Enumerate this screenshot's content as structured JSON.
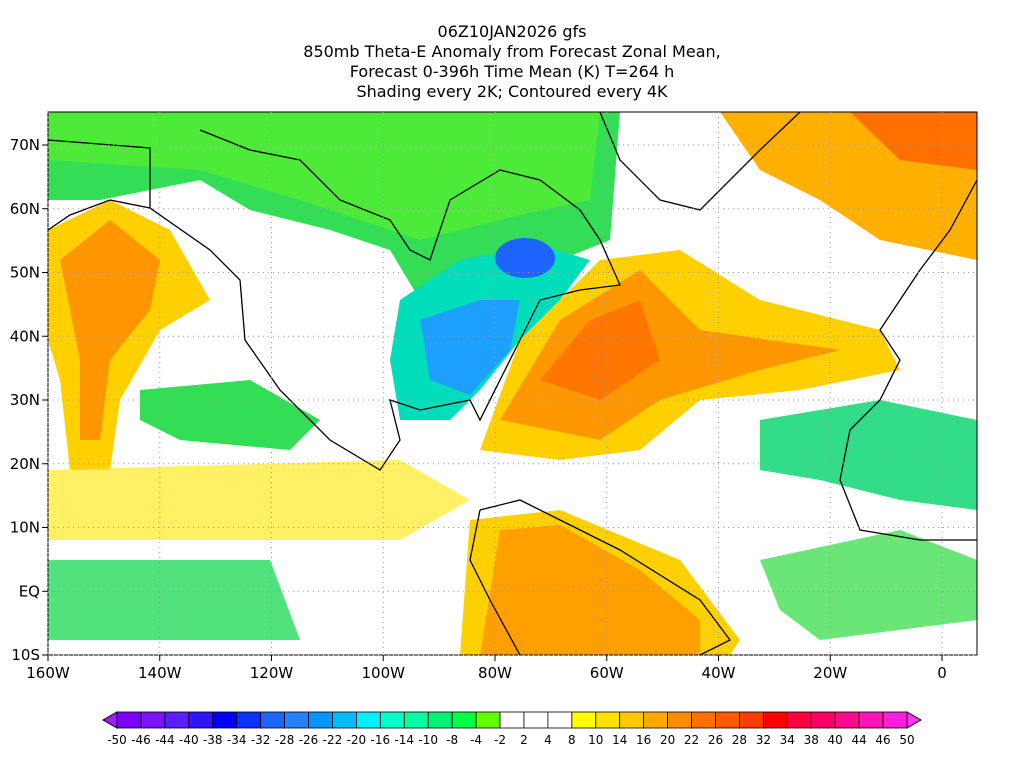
{
  "title_lines": [
    "06Z10JAN2026 gfs",
    "850mb Theta-E Anomaly from Forecast Zonal Mean,",
    "Forecast 0-396h Time Mean (K) T=264 h",
    "Shading every 2K; Contoured every 4K"
  ],
  "map": {
    "lat_labels": [
      "70N",
      "60N",
      "50N",
      "40N",
      "30N",
      "20N",
      "10N",
      "EQ",
      "10S"
    ],
    "lon_labels": [
      "160W",
      "140W",
      "120W",
      "100W",
      "80W",
      "60W",
      "40W",
      "20W",
      "0"
    ]
  },
  "colorbar": {
    "labels": [
      "-50",
      "-46",
      "-44",
      "-40",
      "-38",
      "-34",
      "-32",
      "-28",
      "-26",
      "-22",
      "-20",
      "-16",
      "-14",
      "-10",
      "-8",
      "-4",
      "-2",
      "2",
      "4",
      "8",
      "10",
      "14",
      "16",
      "20",
      "22",
      "26",
      "28",
      "32",
      "34",
      "38",
      "40",
      "44",
      "46",
      "50"
    ],
    "colors": [
      "#8000ff",
      "#7a14ff",
      "#5a1eff",
      "#3214ff",
      "#0000ff",
      "#0a32ff",
      "#1e64ff",
      "#2882ff",
      "#0096ff",
      "#00bcff",
      "#00f0ff",
      "#00ffc8",
      "#00ffa0",
      "#00f078",
      "#00ff46",
      "#60ff00",
      "#ffffff",
      "#ffffff",
      "#ffffff",
      "#ffff00",
      "#ffe000",
      "#ffc800",
      "#ffaa00",
      "#ff8c00",
      "#ff7000",
      "#ff5a00",
      "#ff3c00",
      "#ff0000",
      "#ff0040",
      "#ff0064",
      "#ff0a8c",
      "#ff14b4",
      "#ff1edc"
    ],
    "under_color": "#9b1eff",
    "over_color": "#ff32ff"
  }
}
